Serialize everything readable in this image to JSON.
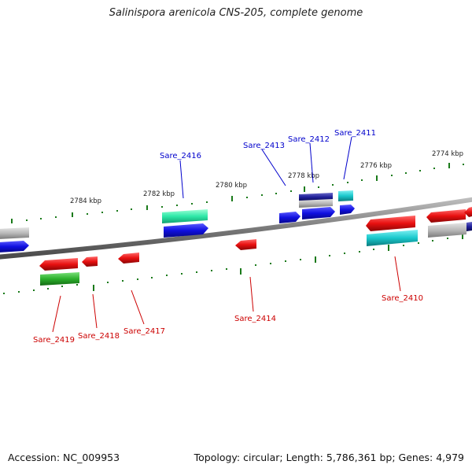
{
  "title": "Salinispora arenicola CNS-205, complete genome",
  "footer": {
    "accession": "Accession: NC_009953",
    "stats": "Topology: circular; Length: 5,786,361 bp; Genes: 4,979"
  },
  "ruler_labels": [
    "2774 kbp",
    "2776 kbp",
    "2778 kbp",
    "2780 kbp",
    "2782 kbp",
    "2784 kbp"
  ],
  "gene_labels": {
    "forward": [
      "Sare_2411",
      "Sare_2412",
      "Sare_2413",
      "Sare_2416"
    ],
    "reverse": [
      "Sare_2410",
      "Sare_2414",
      "Sare_2417",
      "Sare_2418",
      "Sare_2419"
    ]
  },
  "colors": {
    "forward_label": "#0000cc",
    "reverse_label": "#cc0000",
    "backbone": "#777777",
    "tick": "#1a7a1a",
    "gene_blue": "#1414e0",
    "gene_red": "#e81010",
    "gene_cyan": "#19c8cc",
    "gene_green": "#2bb02b",
    "gene_teal": "#2ee8a8",
    "gene_gray": "#b8b8b8",
    "gene_navy": "#101080"
  }
}
